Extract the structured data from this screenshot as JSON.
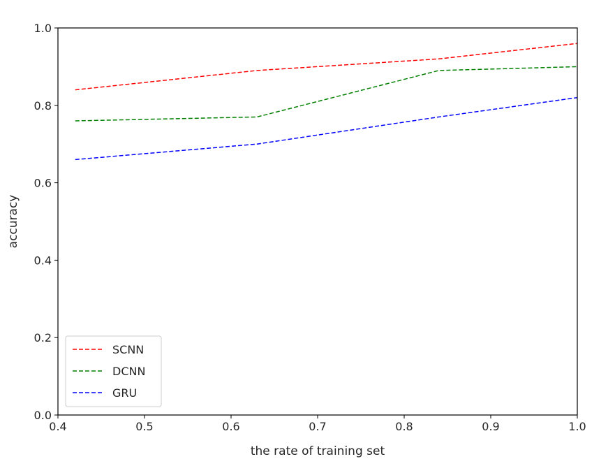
{
  "chart_data": {
    "type": "line",
    "title": "",
    "xlabel": "the rate of training set",
    "ylabel": "accuracy",
    "xlim": [
      0.4,
      1.0
    ],
    "ylim": [
      0.0,
      1.0
    ],
    "x_ticks": [
      "0.4",
      "0.5",
      "0.6",
      "0.7",
      "0.8",
      "0.9",
      "1.0"
    ],
    "y_ticks": [
      "0.0",
      "0.2",
      "0.4",
      "0.6",
      "0.8",
      "1.0"
    ],
    "grid": false,
    "legend_position": "lower-left",
    "line_style": "dashed",
    "x": [
      0.42,
      0.63,
      0.84,
      1.0
    ],
    "series": [
      {
        "name": "SCNN",
        "color": "#ff0000",
        "values": [
          0.84,
          0.89,
          0.92,
          0.96
        ]
      },
      {
        "name": "DCNN",
        "color": "#008000",
        "values": [
          0.76,
          0.77,
          0.89,
          0.9
        ]
      },
      {
        "name": "GRU",
        "color": "#0000ff",
        "values": [
          0.66,
          0.7,
          0.77,
          0.82
        ]
      }
    ]
  }
}
